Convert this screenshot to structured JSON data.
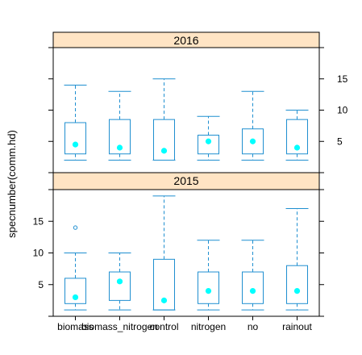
{
  "chart_data": {
    "type": "box",
    "ylabel": "specnumber(comm.hd)",
    "categories": [
      "biomass",
      "biomass_nitrogen",
      "control",
      "nitrogen",
      "no",
      "rainout"
    ],
    "colors": {
      "box": "#1f8fd0",
      "median": "#00ffff",
      "strip": "#ffe4c4",
      "frame": "#000000"
    },
    "panels": [
      {
        "label": "2016",
        "ylim": [
          0,
          20
        ],
        "ticks": [
          5,
          10,
          15
        ],
        "tick_side": "right",
        "boxes": [
          {
            "whisker_low": 2,
            "q1": 3,
            "median": 4.5,
            "q3": 8,
            "whisker_high": 14,
            "outliers": []
          },
          {
            "whisker_low": 2,
            "q1": 3,
            "median": 4,
            "q3": 8.5,
            "whisker_high": 13,
            "outliers": []
          },
          {
            "whisker_low": 2,
            "q1": 2,
            "median": 3.5,
            "q3": 8.5,
            "whisker_high": 15,
            "outliers": []
          },
          {
            "whisker_low": 2,
            "q1": 3,
            "median": 5,
            "q3": 6,
            "whisker_high": 9,
            "outliers": []
          },
          {
            "whisker_low": 2,
            "q1": 3,
            "median": 5,
            "q3": 7,
            "whisker_high": 13,
            "outliers": []
          },
          {
            "whisker_low": 2,
            "q1": 3,
            "median": 4,
            "q3": 8.5,
            "whisker_high": 10,
            "outliers": []
          }
        ]
      },
      {
        "label": "2015",
        "ylim": [
          0,
          20
        ],
        "ticks": [
          5,
          10,
          15
        ],
        "tick_side": "left",
        "boxes": [
          {
            "whisker_low": 1,
            "q1": 2,
            "median": 3,
            "q3": 6,
            "whisker_high": 10,
            "outliers": [
              14
            ]
          },
          {
            "whisker_low": 1,
            "q1": 2.5,
            "median": 5.5,
            "q3": 7,
            "whisker_high": 10,
            "outliers": []
          },
          {
            "whisker_low": 1,
            "q1": 1,
            "median": 2.5,
            "q3": 9,
            "whisker_high": 19,
            "outliers": []
          },
          {
            "whisker_low": 1,
            "q1": 2,
            "median": 4,
            "q3": 7,
            "whisker_high": 12,
            "outliers": []
          },
          {
            "whisker_low": 1,
            "q1": 2,
            "median": 4,
            "q3": 7,
            "whisker_high": 12,
            "outliers": []
          },
          {
            "whisker_low": 1,
            "q1": 2,
            "median": 4,
            "q3": 8,
            "whisker_high": 17,
            "outliers": []
          }
        ]
      }
    ]
  }
}
